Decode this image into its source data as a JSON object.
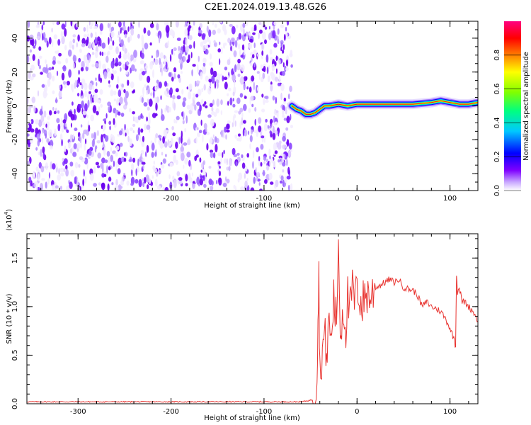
{
  "figure": {
    "title": "C2E1.2024.019.13.48.G26"
  },
  "chart_data": [
    {
      "type": "heatmap",
      "panel": "spectrogram",
      "xlabel": "Height of straight line (km)",
      "ylabel": "Frequency (Hz)",
      "xlim": [
        -355,
        130
      ],
      "ylim": [
        -50,
        50
      ],
      "x_ticks": [
        -300,
        -200,
        -100,
        0,
        100
      ],
      "x_tick_labels": [
        "-300",
        "-200",
        "-100",
        "0",
        "100"
      ],
      "y_ticks": [
        -40,
        -20,
        0,
        20,
        40
      ],
      "y_tick_labels": [
        "-40",
        "-20",
        "0",
        "20",
        "40"
      ],
      "grid": false,
      "noise_region": {
        "x_range": [
          -355,
          -70
        ],
        "y_range": [
          -50,
          50
        ],
        "description_color": "#7a2cff"
      },
      "signal_track": {
        "x": [
          -70,
          -65,
          -60,
          -55,
          -50,
          -45,
          -40,
          -35,
          -30,
          -20,
          -10,
          0,
          20,
          40,
          60,
          80,
          90,
          100,
          110,
          120,
          130
        ],
        "frequency": [
          0,
          -2,
          -3,
          -5,
          -5,
          -4,
          -2,
          0,
          0,
          1,
          0,
          1,
          1,
          1,
          1,
          2,
          3,
          2,
          1,
          1,
          2
        ]
      },
      "colorbar": {
        "label": "Normalized spectral amplitude",
        "range": [
          0,
          1
        ],
        "ticks": [
          0,
          0.2,
          0.4,
          0.6,
          0.8
        ],
        "tick_labels": [
          "0.0",
          "0.2",
          "0.4",
          "0.6",
          "0.8"
        ],
        "colors": [
          "#ffffff",
          "#7f00ff",
          "#0000ff",
          "#00c8ff",
          "#00ff80",
          "#80ff00",
          "#ffff00",
          "#ff8000",
          "#ff0000",
          "#ff0080"
        ]
      }
    },
    {
      "type": "line",
      "panel": "snr",
      "xlabel": "Height of straight line (km)",
      "ylabel": "SNR (10 * v/v)",
      "y_multiplier_label": "(x10",
      "y_multiplier_exp": "4",
      "y_multiplier_close": ")",
      "xlim": [
        -355,
        130
      ],
      "ylim": [
        0,
        1.75
      ],
      "x_ticks": [
        -300,
        -200,
        -100,
        0,
        100
      ],
      "x_tick_labels": [
        "-300",
        "-200",
        "-100",
        "0",
        "100"
      ],
      "y_ticks": [
        0,
        0.5,
        1.0,
        1.5
      ],
      "y_tick_labels": [
        "0.0",
        "0.5",
        "1.0",
        "1.5"
      ],
      "grid": false,
      "series": [
        {
          "color": "#e8332f",
          "x": [
            -355,
            -300,
            -250,
            -200,
            -150,
            -100,
            -60,
            -48,
            -45,
            -43,
            -42,
            -41,
            -40,
            -38,
            -35,
            -32,
            -30,
            -28,
            -25,
            -22,
            -20,
            -18,
            -15,
            -12,
            -10,
            -8,
            -5,
            -2,
            0,
            5,
            10,
            15,
            20,
            25,
            30,
            35,
            40,
            45,
            50,
            55,
            60,
            65,
            70,
            75,
            80,
            85,
            90,
            95,
            100,
            103,
            105,
            106,
            107,
            108,
            110,
            113,
            116,
            120,
            125,
            130
          ],
          "y": [
            0.02,
            0.02,
            0.02,
            0.02,
            0.02,
            0.02,
            0.02,
            0.04,
            0.15,
            0.35,
            0.9,
            1.35,
            0.3,
            0.5,
            0.7,
            0.5,
            0.9,
            0.6,
            1.1,
            0.8,
            1.75,
            0.7,
            1.0,
            0.8,
            1.1,
            0.9,
            1.2,
            1.0,
            1.25,
            1.0,
            1.15,
            1.1,
            1.2,
            1.22,
            1.25,
            1.28,
            1.25,
            1.28,
            1.2,
            1.18,
            1.17,
            1.12,
            1.0,
            1.05,
            1.0,
            0.98,
            0.95,
            0.88,
            0.78,
            0.7,
            0.65,
            0.58,
            1.35,
            1.15,
            1.2,
            1.05,
            1.05,
            1.0,
            0.95,
            0.85
          ]
        }
      ]
    }
  ]
}
